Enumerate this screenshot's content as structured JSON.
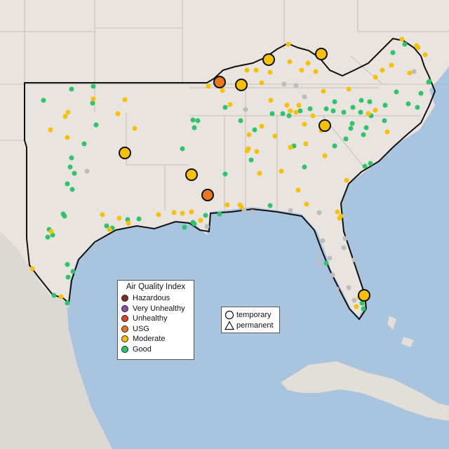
{
  "legend": {
    "title": "Air Quality Index",
    "items": [
      {
        "label": "Hazardous",
        "color": "#7e2b22"
      },
      {
        "label": "Very Unhealthy",
        "color": "#8b4fa8"
      },
      {
        "label": "Unhealthy",
        "color": "#e0412b"
      },
      {
        "label": "USG",
        "color": "#e87722"
      },
      {
        "label": "Moderate",
        "color": "#f5c10e"
      },
      {
        "label": "Good",
        "color": "#2fc46b"
      }
    ]
  },
  "shape_legend": {
    "temporary": "temporary",
    "permanent": "permanent"
  },
  "colors": {
    "water": "#a9c4de",
    "land": "#e9e4df",
    "no_data": "#bdbdbd"
  },
  "monitors_large": [
    {
      "category": "USG"
    },
    {
      "category": "USG"
    },
    {
      "category": "Moderate"
    },
    {
      "category": "Moderate"
    },
    {
      "category": "Moderate"
    },
    {
      "category": "Moderate"
    },
    {
      "category": "Moderate"
    },
    {
      "category": "Moderate"
    },
    {
      "category": "Moderate"
    }
  ]
}
